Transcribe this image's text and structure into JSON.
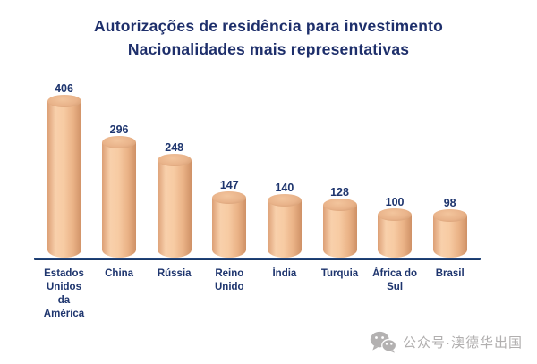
{
  "title": {
    "line1": "Autorizações de residência para investimento",
    "line2": "Nacionalidades mais representativas"
  },
  "chart_data": {
    "type": "bar",
    "style": "3d-cylinder",
    "title": "Autorizações de residência para investimento",
    "subtitle": "Nacionalidades mais representativas",
    "categories": [
      "Estados\nUnidos\nda\nAmérica",
      "China",
      "Rússia",
      "Reino\nUnido",
      "Índia",
      "Turquia",
      "África do\nSul",
      "Brasil"
    ],
    "values": [
      406,
      296,
      248,
      147,
      140,
      128,
      100,
      98
    ],
    "data_labels_shown": true,
    "xlabel": "",
    "ylabel": "",
    "ylim": [
      0,
      420
    ],
    "grid": false,
    "legend": "none",
    "bar_color": "#f2c096",
    "text_color": "#1e356e",
    "axis_line_color": "#1e4077"
  },
  "watermark": {
    "text": "公众号·澳德华出国",
    "icon": "wechat-icon",
    "color": "#b1afaf"
  }
}
